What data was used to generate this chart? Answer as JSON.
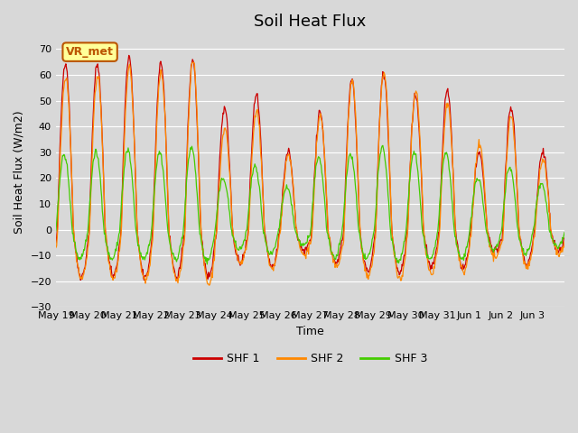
{
  "title": "Soil Heat Flux",
  "ylabel": "Soil Heat Flux (W/m2)",
  "xlabel": "Time",
  "ylim": [
    -30,
    75
  ],
  "yticks": [
    -30,
    -20,
    -10,
    0,
    10,
    20,
    30,
    40,
    50,
    60,
    70
  ],
  "plot_bg_color": "#d8d8d8",
  "shf1_color": "#cc0000",
  "shf2_color": "#ff8800",
  "shf3_color": "#44cc00",
  "legend_labels": [
    "SHF 1",
    "SHF 2",
    "SHF 3"
  ],
  "annotation_text": "VR_met",
  "annotation_color": "#bb5500",
  "annotation_bg": "#ffff99",
  "num_days": 16,
  "points_per_day": 48,
  "xtick_labels": [
    "May 19",
    "May 20",
    "May 21",
    "May 22",
    "May 23",
    "May 24",
    "May 25",
    "May 26",
    "May 27",
    "May 28",
    "May 29",
    "May 30",
    "May 31",
    "Jun 1",
    "Jun 2",
    "Jun 3"
  ],
  "shf1_amplitudes": [
    65,
    64,
    67,
    65,
    66,
    47,
    52,
    30,
    45,
    58,
    60,
    52,
    54,
    30,
    47,
    30
  ],
  "shf2_amplitudes": [
    60,
    60,
    64,
    62,
    67,
    40,
    47,
    30,
    45,
    59,
    62,
    54,
    50,
    34,
    45,
    28
  ],
  "shf3_amplitudes": [
    29,
    30,
    31,
    30,
    32,
    20,
    25,
    16,
    28,
    29,
    32,
    30,
    30,
    20,
    24,
    18
  ]
}
